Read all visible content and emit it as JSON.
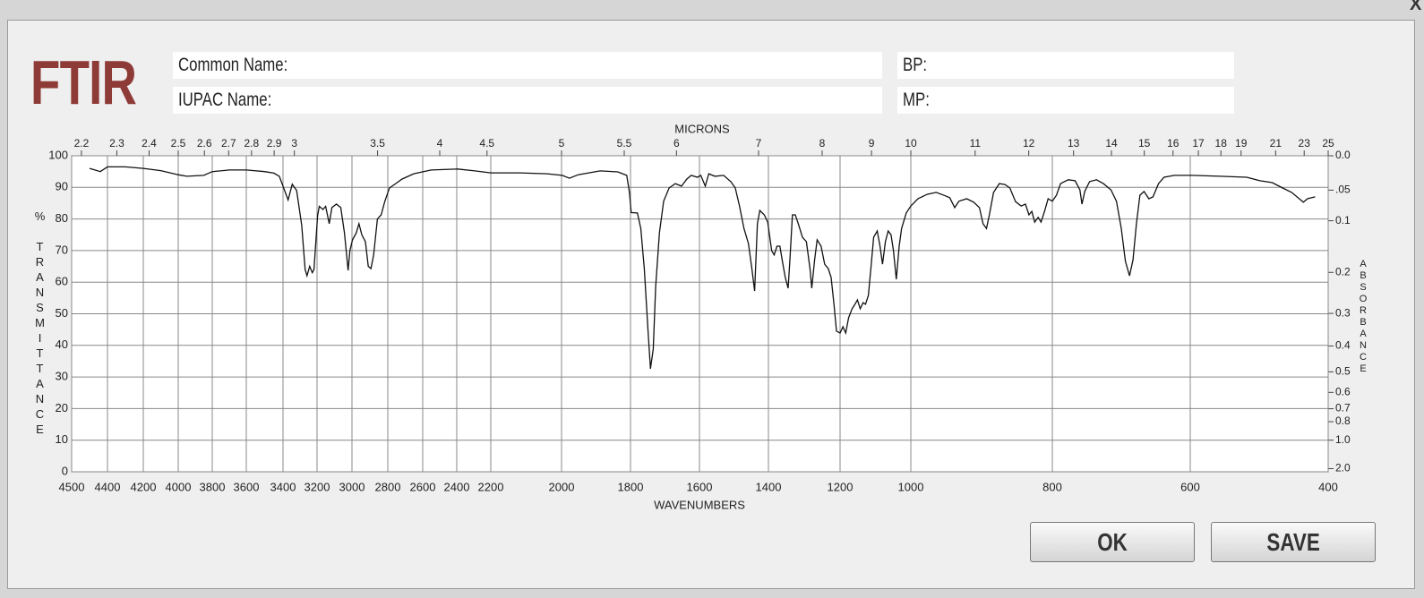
{
  "header": {
    "logo": "FTIR",
    "fields": [
      "Common Name:",
      "IUPAC Name:",
      "BP:",
      "MP:"
    ],
    "close": "X"
  },
  "buttons": [
    "OK",
    "SAVE"
  ],
  "chart_data": {
    "type": "line",
    "x_label": "WAVENUMBERS",
    "x2_label": "MICRONS",
    "y_label": "% TRANSMITTANCE",
    "y2_label": "ABSORBANCE",
    "x": [
      4500,
      4470,
      4440,
      4400,
      4300,
      4200,
      4100,
      4000,
      3950,
      3850,
      3800,
      3700,
      3600,
      3500,
      3450,
      3420,
      3370,
      3346,
      3320,
      3290,
      3270,
      3259,
      3243,
      3228,
      3218,
      3197,
      3187,
      3166,
      3151,
      3130,
      3115,
      3089,
      3064,
      3043,
      3022,
      3012,
      2997,
      2976,
      2961,
      2945,
      2925,
      2909,
      2894,
      2879,
      2858,
      2837,
      2817,
      2791,
      2755,
      2719,
      2652,
      2550,
      2395,
      2293,
      2200,
      2118,
      2041,
      1998,
      1977,
      1952,
      1888,
      1837,
      1811,
      1803,
      1798,
      1780,
      1770,
      1760,
      1749,
      1742,
      1734,
      1727,
      1716,
      1704,
      1688,
      1670,
      1652,
      1637,
      1624,
      1606,
      1596,
      1583,
      1573,
      1555,
      1530,
      1509,
      1496,
      1484,
      1471,
      1458,
      1448,
      1440,
      1432,
      1425,
      1412,
      1402,
      1391,
      1384,
      1376,
      1368,
      1361,
      1353,
      1345,
      1340,
      1333,
      1325,
      1315,
      1305,
      1294,
      1284,
      1279,
      1271,
      1264,
      1253,
      1243,
      1233,
      1225,
      1217,
      1210,
      1200,
      1192,
      1184,
      1176,
      1166,
      1158,
      1151,
      1143,
      1135,
      1128,
      1120,
      1113,
      1105,
      1095,
      1087,
      1080,
      1072,
      1064,
      1056,
      1049,
      1041,
      1033,
      1026,
      1013,
      1000,
      990,
      977,
      964,
      951,
      945,
      938,
      932,
      921,
      911,
      903,
      898,
      893,
      889,
      883,
      875,
      867,
      860,
      852,
      844,
      838,
      833,
      829,
      825,
      820,
      816,
      811,
      806,
      800,
      794,
      788,
      777,
      767,
      760,
      757,
      753,
      746,
      736,
      726,
      715,
      707,
      700,
      694,
      688,
      683,
      678,
      673,
      667,
      660,
      654,
      646,
      638,
      623,
      597,
      557,
      518,
      499,
      481,
      466,
      453,
      442,
      436,
      430,
      419
    ],
    "series": [
      {
        "color": "#111111",
        "values": [
          96,
          95.5,
          95,
          96.5,
          96.5,
          96,
          95.3,
          94,
          93.5,
          93.8,
          95,
          95.5,
          95.5,
          95,
          94.5,
          93.5,
          86,
          91,
          89,
          78,
          64,
          62,
          65,
          63,
          64,
          81,
          84,
          83,
          84,
          78.5,
          83.6,
          84.7,
          83.6,
          75.6,
          63.7,
          70,
          73.4,
          75.6,
          78.5,
          75,
          72.8,
          65,
          64.3,
          68.6,
          80,
          81.3,
          85.5,
          89.8,
          91.2,
          92.6,
          94.3,
          95.5,
          95.8,
          95.2,
          94.6,
          94.6,
          94.3,
          93.8,
          92.9,
          94,
          95.2,
          94.9,
          93.8,
          88.4,
          82,
          81.9,
          77,
          64.3,
          44.5,
          32.6,
          38.8,
          58.6,
          75.6,
          85.6,
          89.8,
          91.2,
          90.4,
          92.6,
          93.8,
          93.2,
          93.8,
          90.4,
          94.3,
          93.5,
          93.8,
          91.8,
          89.8,
          84.1,
          77,
          72.2,
          64.3,
          57.2,
          78.5,
          82.7,
          81.3,
          79,
          70,
          68.6,
          71.4,
          71.4,
          66.6,
          61.5,
          58.1,
          67.1,
          81.3,
          81.3,
          77.9,
          74.2,
          72.8,
          64.3,
          58.1,
          67.1,
          73.4,
          71.4,
          65.7,
          64.3,
          61.5,
          53,
          44.5,
          43.9,
          45.9,
          43.9,
          48.7,
          51.6,
          53,
          54.4,
          51.6,
          53.5,
          53,
          55.8,
          64.3,
          74.2,
          76.2,
          71.4,
          65.7,
          72.8,
          76.2,
          75,
          70,
          60.9,
          71.4,
          77,
          81.9,
          84.1,
          86.4,
          87.8,
          88.4,
          87.3,
          86.7,
          83.6,
          85.6,
          86.4,
          85.3,
          83.6,
          78.5,
          77,
          81.3,
          88.4,
          91.2,
          90.9,
          89.8,
          85.5,
          84.1,
          84.7,
          81.3,
          82.4,
          79,
          80.5,
          79,
          82.4,
          86.4,
          85.6,
          87.5,
          91.2,
          92.4,
          92.1,
          89.2,
          84.7,
          88.7,
          91.8,
          92.4,
          91.2,
          89.2,
          85.6,
          77,
          66.6,
          62,
          67.1,
          78.5,
          87.5,
          88.7,
          86.4,
          87,
          91.2,
          93.2,
          93.8,
          93.8,
          93.5,
          93.2,
          92.1,
          91.5,
          89.8,
          88.4,
          86.4,
          85.3,
          86.4,
          87
        ]
      }
    ],
    "xlim": [
      4500,
      400
    ],
    "xticks": [
      4500,
      4400,
      4200,
      4000,
      3800,
      3600,
      3400,
      3200,
      3000,
      2800,
      2600,
      2400,
      2200,
      2000,
      1800,
      1600,
      1400,
      1200,
      1000,
      800,
      600,
      400
    ],
    "x2ticks": [
      2.2,
      2.3,
      2.4,
      2.5,
      2.6,
      2.7,
      2.8,
      2.9,
      3,
      3.5,
      4,
      4.5,
      5,
      5.5,
      6,
      7,
      8,
      9,
      10,
      11,
      12,
      13,
      14,
      15,
      16,
      17,
      18,
      19,
      21,
      23,
      25
    ],
    "ylim": [
      0,
      100
    ],
    "yticks": [
      0,
      10,
      20,
      30,
      40,
      50,
      60,
      70,
      80,
      90,
      100
    ],
    "y2ticks": [
      {
        "value": 0,
        "label": "0.0"
      },
      {
        "value": 0.05,
        "label": ".05"
      },
      0.1,
      0.2,
      0.3,
      0.4,
      0.5,
      0.6,
      0.7,
      0.8,
      {
        "value": 1,
        "label": "1.0"
      },
      {
        "value": 2,
        "label": "2.0"
      }
    ],
    "grid": true
  }
}
